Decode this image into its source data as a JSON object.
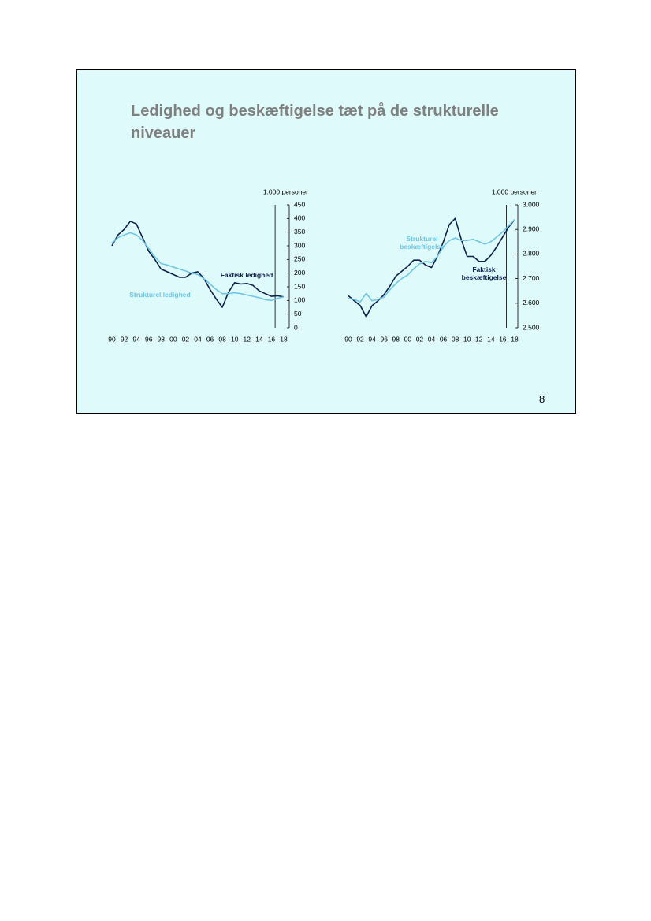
{
  "slide": {
    "title": "Ledighed og beskæftigelse tæt på de strukturelle niveauer",
    "page_number": "8"
  },
  "chart_data": [
    {
      "type": "line",
      "y_label": "1.000 personer",
      "categories": [
        "90",
        null,
        "92",
        null,
        "94",
        null,
        "96",
        null,
        "98",
        null,
        "00",
        null,
        "02",
        null,
        "04",
        null,
        "06",
        null,
        "08",
        null,
        "10",
        null,
        "12",
        null,
        "14",
        null,
        "16",
        null,
        "18"
      ],
      "ylim": [
        0,
        450
      ],
      "yticks": [
        0,
        50,
        100,
        150,
        200,
        250,
        300,
        350,
        400,
        450
      ],
      "series": [
        {
          "name": "Faktisk ledighed",
          "color": "#0d1f4e",
          "values": [
            300,
            340,
            360,
            390,
            380,
            330,
            280,
            250,
            215,
            205,
            195,
            185,
            185,
            200,
            205,
            180,
            140,
            105,
            75,
            130,
            165,
            160,
            162,
            155,
            135,
            125,
            115,
            117,
            113
          ]
        },
        {
          "name": "Strukturel ledighed",
          "color": "#6ec6e6",
          "values": [
            310,
            330,
            340,
            348,
            340,
            320,
            290,
            260,
            235,
            230,
            222,
            215,
            208,
            200,
            195,
            180,
            160,
            140,
            125,
            125,
            128,
            125,
            120,
            115,
            110,
            103,
            100,
            108,
            113
          ]
        }
      ]
    },
    {
      "type": "line",
      "y_label": "1.000 personer",
      "categories": [
        "90",
        null,
        "92",
        null,
        "94",
        null,
        "96",
        null,
        "98",
        null,
        "00",
        null,
        "02",
        null,
        "04",
        null,
        "06",
        null,
        "08",
        null,
        "10",
        null,
        "12",
        null,
        "14",
        null,
        "16",
        null,
        "18"
      ],
      "ylim": [
        2500,
        3000
      ],
      "yticks": [
        {
          "value": 2500,
          "label": "2.500"
        },
        {
          "value": 2600,
          "label": "2.600"
        },
        {
          "value": 2700,
          "label": "2.700"
        },
        {
          "value": 2800,
          "label": "2.800"
        },
        {
          "value": 2900,
          "label": "2.900"
        },
        {
          "value": 3000,
          "label": "3.000"
        }
      ],
      "series": [
        {
          "name": "Faktisk beskæftigelse",
          "color": "#0d1f4e",
          "values": [
            2630,
            2610,
            2590,
            2545,
            2590,
            2610,
            2635,
            2670,
            2710,
            2730,
            2750,
            2775,
            2775,
            2755,
            2745,
            2790,
            2850,
            2920,
            2945,
            2860,
            2790,
            2790,
            2770,
            2770,
            2795,
            2830,
            2870,
            2910,
            2940
          ]
        },
        {
          "name": "Strukturel beskæftigelse",
          "color": "#6ec6e6",
          "values": [
            2620,
            2615,
            2605,
            2640,
            2610,
            2615,
            2625,
            2655,
            2680,
            2700,
            2715,
            2740,
            2760,
            2770,
            2765,
            2790,
            2830,
            2855,
            2865,
            2855,
            2855,
            2860,
            2850,
            2840,
            2850,
            2870,
            2890,
            2915,
            2940
          ]
        }
      ]
    }
  ]
}
